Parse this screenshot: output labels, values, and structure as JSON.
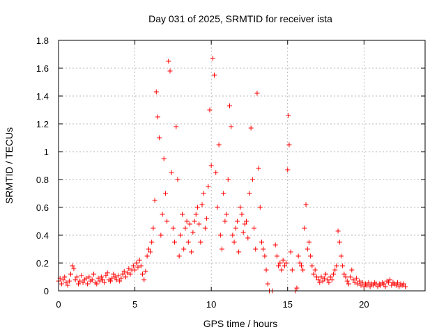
{
  "chart_data": {
    "type": "scatter",
    "title": "Day 031 of 2025, SRMTID for receiver ista",
    "xlabel": "GPS time / hours",
    "ylabel": "SRMTID / TECUs",
    "xlim": [
      0,
      24
    ],
    "ylim": [
      0,
      1.8
    ],
    "xticks": [
      0,
      5,
      10,
      15,
      20
    ],
    "xtick_labels": [
      "0",
      "5",
      "10",
      "15",
      "20"
    ],
    "yticks": [
      0,
      0.2,
      0.4,
      0.6,
      0.8,
      1.0,
      1.2,
      1.4,
      1.6,
      1.8
    ],
    "ytick_labels": [
      "0",
      "0.2",
      "0.4",
      "0.6",
      "0.8",
      "1",
      "1.2",
      "1.4",
      "1.6",
      "1.8"
    ],
    "grid": true,
    "marker": "plus",
    "color": "#ff0000",
    "series": [
      {
        "name": "SRMTID",
        "points": [
          [
            0.0,
            0.07
          ],
          [
            0.1,
            0.09
          ],
          [
            0.2,
            0.05
          ],
          [
            0.3,
            0.08
          ],
          [
            0.4,
            0.1
          ],
          [
            0.5,
            0.06
          ],
          [
            0.6,
            0.04
          ],
          [
            0.7,
            0.07
          ],
          [
            0.8,
            0.12
          ],
          [
            0.9,
            0.18
          ],
          [
            1.0,
            0.16
          ],
          [
            1.1,
            0.08
          ],
          [
            1.2,
            0.1
          ],
          [
            1.3,
            0.05
          ],
          [
            1.4,
            0.07
          ],
          [
            1.5,
            0.11
          ],
          [
            1.6,
            0.06
          ],
          [
            1.7,
            0.08
          ],
          [
            1.8,
            0.09
          ],
          [
            1.9,
            0.05
          ],
          [
            2.0,
            0.1
          ],
          [
            2.1,
            0.07
          ],
          [
            2.2,
            0.08
          ],
          [
            2.3,
            0.12
          ],
          [
            2.4,
            0.06
          ],
          [
            2.5,
            0.05
          ],
          [
            2.6,
            0.09
          ],
          [
            2.7,
            0.07
          ],
          [
            2.8,
            0.1
          ],
          [
            2.9,
            0.08
          ],
          [
            3.0,
            0.06
          ],
          [
            3.1,
            0.11
          ],
          [
            3.2,
            0.13
          ],
          [
            3.3,
            0.08
          ],
          [
            3.4,
            0.07
          ],
          [
            3.5,
            0.09
          ],
          [
            3.6,
            0.12
          ],
          [
            3.7,
            0.1
          ],
          [
            3.8,
            0.08
          ],
          [
            3.9,
            0.11
          ],
          [
            4.0,
            0.07
          ],
          [
            4.1,
            0.09
          ],
          [
            4.2,
            0.12
          ],
          [
            4.3,
            0.14
          ],
          [
            4.4,
            0.1
          ],
          [
            4.5,
            0.13
          ],
          [
            4.6,
            0.16
          ],
          [
            4.7,
            0.12
          ],
          [
            4.8,
            0.15
          ],
          [
            4.9,
            0.18
          ],
          [
            5.0,
            0.15
          ],
          [
            5.1,
            0.2
          ],
          [
            5.2,
            0.17
          ],
          [
            5.3,
            0.22
          ],
          [
            5.4,
            0.18
          ],
          [
            5.5,
            0.12
          ],
          [
            5.6,
            0.08
          ],
          [
            5.7,
            0.14
          ],
          [
            5.8,
            0.25
          ],
          [
            5.9,
            0.3
          ],
          [
            6.0,
            0.28
          ],
          [
            6.1,
            0.35
          ],
          [
            6.2,
            0.45
          ],
          [
            6.3,
            0.65
          ],
          [
            6.4,
            1.43
          ],
          [
            6.5,
            1.25
          ],
          [
            6.6,
            1.1
          ],
          [
            6.7,
            0.4
          ],
          [
            6.8,
            0.55
          ],
          [
            6.9,
            0.95
          ],
          [
            7.0,
            0.7
          ],
          [
            7.1,
            0.5
          ],
          [
            7.2,
            1.65
          ],
          [
            7.3,
            1.58
          ],
          [
            7.4,
            0.85
          ],
          [
            7.5,
            0.45
          ],
          [
            7.6,
            0.35
          ],
          [
            7.7,
            1.18
          ],
          [
            7.8,
            0.8
          ],
          [
            7.9,
            0.25
          ],
          [
            8.0,
            0.4
          ],
          [
            8.1,
            0.55
          ],
          [
            8.2,
            0.3
          ],
          [
            8.3,
            0.45
          ],
          [
            8.4,
            0.5
          ],
          [
            8.5,
            0.35
          ],
          [
            8.6,
            0.48
          ],
          [
            8.7,
            0.28
          ],
          [
            8.8,
            0.42
          ],
          [
            8.9,
            0.5
          ],
          [
            9.0,
            0.55
          ],
          [
            9.1,
            0.6
          ],
          [
            9.2,
            0.48
          ],
          [
            9.3,
            0.35
          ],
          [
            9.4,
            0.62
          ],
          [
            9.5,
            0.7
          ],
          [
            9.6,
            0.45
          ],
          [
            9.7,
            0.52
          ],
          [
            9.8,
            0.75
          ],
          [
            9.9,
            1.3
          ],
          [
            10.0,
            0.9
          ],
          [
            10.1,
            1.67
          ],
          [
            10.2,
            1.55
          ],
          [
            10.3,
            0.85
          ],
          [
            10.4,
            0.6
          ],
          [
            10.5,
            1.05
          ],
          [
            10.6,
            0.4
          ],
          [
            10.7,
            0.3
          ],
          [
            10.8,
            0.7
          ],
          [
            10.9,
            0.5
          ],
          [
            11.0,
            0.55
          ],
          [
            11.1,
            0.8
          ],
          [
            11.2,
            1.33
          ],
          [
            11.3,
            1.18
          ],
          [
            11.4,
            0.4
          ],
          [
            11.5,
            0.35
          ],
          [
            11.6,
            0.45
          ],
          [
            11.7,
            0.5
          ],
          [
            11.8,
            0.28
          ],
          [
            11.9,
            0.6
          ],
          [
            12.0,
            0.55
          ],
          [
            12.1,
            0.42
          ],
          [
            12.2,
            0.48
          ],
          [
            12.3,
            0.5
          ],
          [
            12.4,
            0.38
          ],
          [
            12.5,
            0.7
          ],
          [
            12.6,
            1.17
          ],
          [
            12.7,
            0.8
          ],
          [
            12.8,
            0.45
          ],
          [
            12.9,
            0.3
          ],
          [
            13.0,
            1.42
          ],
          [
            13.1,
            0.88
          ],
          [
            13.2,
            0.6
          ],
          [
            13.3,
            0.35
          ],
          [
            13.4,
            0.3
          ],
          [
            13.5,
            0.25
          ],
          [
            13.6,
            0.15
          ],
          [
            13.7,
            0.05
          ],
          [
            13.8,
            0.0
          ],
          [
            14.0,
            0.0
          ],
          [
            14.2,
            0.33
          ],
          [
            14.3,
            0.25
          ],
          [
            14.4,
            0.18
          ],
          [
            14.5,
            0.2
          ],
          [
            14.6,
            0.15
          ],
          [
            14.7,
            0.22
          ],
          [
            14.8,
            0.18
          ],
          [
            14.9,
            0.2
          ],
          [
            15.0,
            0.87
          ],
          [
            15.05,
            1.26
          ],
          [
            15.1,
            1.05
          ],
          [
            15.2,
            0.28
          ],
          [
            15.3,
            0.15
          ],
          [
            15.5,
            0.0
          ],
          [
            15.6,
            0.02
          ],
          [
            15.7,
            0.25
          ],
          [
            15.8,
            0.2
          ],
          [
            15.9,
            0.18
          ],
          [
            16.0,
            0.15
          ],
          [
            16.1,
            0.45
          ],
          [
            16.2,
            0.62
          ],
          [
            16.3,
            0.3
          ],
          [
            16.4,
            0.35
          ],
          [
            16.5,
            0.25
          ],
          [
            16.6,
            0.18
          ],
          [
            16.7,
            0.12
          ],
          [
            16.8,
            0.15
          ],
          [
            16.9,
            0.1
          ],
          [
            17.0,
            0.08
          ],
          [
            17.1,
            0.06
          ],
          [
            17.2,
            0.1
          ],
          [
            17.3,
            0.07
          ],
          [
            17.4,
            0.09
          ],
          [
            17.5,
            0.12
          ],
          [
            17.6,
            0.08
          ],
          [
            17.7,
            0.06
          ],
          [
            17.8,
            0.1
          ],
          [
            17.9,
            0.08
          ],
          [
            18.0,
            0.12
          ],
          [
            18.1,
            0.15
          ],
          [
            18.2,
            0.18
          ],
          [
            18.3,
            0.43
          ],
          [
            18.4,
            0.35
          ],
          [
            18.5,
            0.25
          ],
          [
            18.6,
            0.18
          ],
          [
            18.7,
            0.12
          ],
          [
            18.8,
            0.1
          ],
          [
            18.9,
            0.07
          ],
          [
            19.0,
            0.05
          ],
          [
            19.1,
            0.1
          ],
          [
            19.2,
            0.15
          ],
          [
            19.3,
            0.08
          ],
          [
            19.4,
            0.06
          ],
          [
            19.5,
            0.09
          ],
          [
            19.6,
            0.05
          ],
          [
            19.7,
            0.07
          ],
          [
            19.8,
            0.04
          ],
          [
            19.9,
            0.06
          ],
          [
            20.0,
            0.03
          ],
          [
            20.1,
            0.05
          ],
          [
            20.2,
            0.04
          ],
          [
            20.3,
            0.06
          ],
          [
            20.4,
            0.03
          ],
          [
            20.5,
            0.05
          ],
          [
            20.6,
            0.04
          ],
          [
            20.7,
            0.06
          ],
          [
            20.8,
            0.05
          ],
          [
            20.9,
            0.03
          ],
          [
            21.0,
            0.05
          ],
          [
            21.1,
            0.04
          ],
          [
            21.2,
            0.06
          ],
          [
            21.3,
            0.05
          ],
          [
            21.4,
            0.03
          ],
          [
            21.5,
            0.07
          ],
          [
            21.6,
            0.06
          ],
          [
            21.7,
            0.08
          ],
          [
            21.8,
            0.04
          ],
          [
            21.9,
            0.06
          ],
          [
            22.0,
            0.05
          ],
          [
            22.1,
            0.04
          ],
          [
            22.2,
            0.06
          ],
          [
            22.3,
            0.03
          ],
          [
            22.4,
            0.05
          ],
          [
            22.5,
            0.04
          ],
          [
            22.6,
            0.05
          ],
          [
            22.7,
            0.03
          ]
        ]
      }
    ]
  }
}
